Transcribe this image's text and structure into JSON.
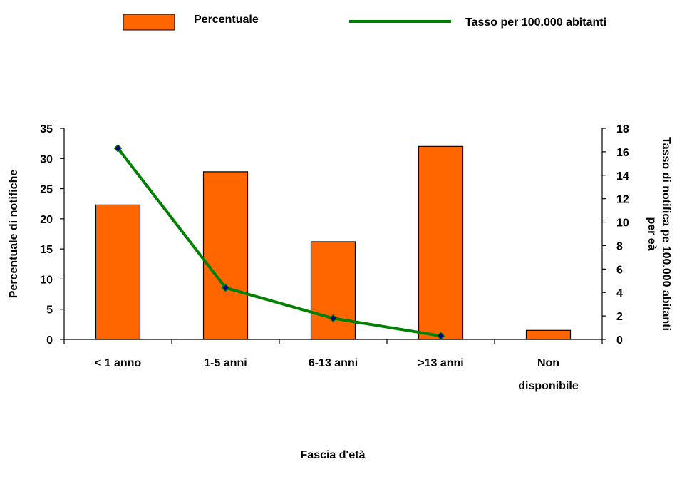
{
  "chart_data": {
    "type": "bar",
    "categories": [
      "< 1 anno",
      "1-5 anni",
      "6-13 anni",
      ">13 anni",
      "Non disponibile"
    ],
    "category_lines": [
      [
        "< 1 anno"
      ],
      [
        "1-5 anni"
      ],
      [
        "6-13 anni"
      ],
      [
        ">13 anni"
      ],
      [
        "Non",
        "disponibile"
      ]
    ],
    "series": [
      {
        "name": "Percentuale",
        "type": "bar",
        "axis": "left",
        "color": "#FF6600",
        "values": [
          22.3,
          27.8,
          16.2,
          32.0,
          1.5
        ]
      },
      {
        "name": "Tasso per 100.000 abitanti",
        "type": "line",
        "axis": "right",
        "color": "#008000",
        "marker_color": "#000080",
        "values": [
          16.3,
          4.4,
          1.8,
          0.3,
          null
        ]
      }
    ],
    "xlabel": "Fascia d'età",
    "ylabel": "Percentuale di notifiche",
    "y2label_lines": [
      "Tasso di notifica pe 100.000 abitanti",
      "per eà"
    ],
    "ylim": [
      0,
      35
    ],
    "yticks": [
      0,
      5,
      10,
      15,
      20,
      25,
      30,
      35
    ],
    "y2lim": [
      0,
      18
    ],
    "y2ticks": [
      0,
      2,
      4,
      6,
      8,
      10,
      12,
      14,
      16,
      18
    ],
    "grid": false,
    "legend": "top"
  }
}
